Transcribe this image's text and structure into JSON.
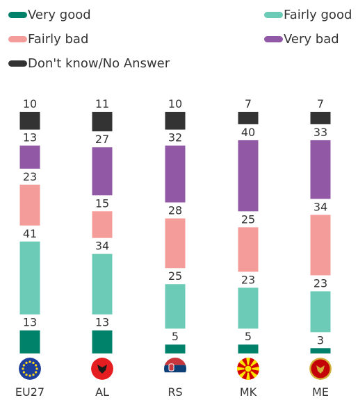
{
  "chart_data": {
    "type": "bar",
    "stacked": true,
    "title": "",
    "xlabel": "",
    "ylabel": "",
    "categories": [
      "EU27",
      "AL",
      "RS",
      "MK",
      "ME"
    ],
    "category_icons": [
      "eu-flag-icon",
      "albania-flag-icon",
      "serbia-flag-icon",
      "north-macedonia-flag-icon",
      "montenegro-flag-icon"
    ],
    "series": [
      {
        "name": "Very good",
        "color": "#00816a",
        "values": [
          13,
          13,
          5,
          5,
          3
        ]
      },
      {
        "name": "Fairly good",
        "color": "#6ccbb7",
        "values": [
          41,
          34,
          25,
          23,
          23
        ]
      },
      {
        "name": "Fairly bad",
        "color": "#f49c9a",
        "values": [
          23,
          15,
          28,
          25,
          34
        ]
      },
      {
        "name": "Very bad",
        "color": "#9058a5",
        "values": [
          13,
          27,
          32,
          40,
          33
        ]
      },
      {
        "name": "Don't know/No Answer",
        "color": "#333333",
        "values": [
          10,
          11,
          10,
          7,
          7
        ]
      }
    ],
    "legend_position": "top",
    "grid": false
  }
}
